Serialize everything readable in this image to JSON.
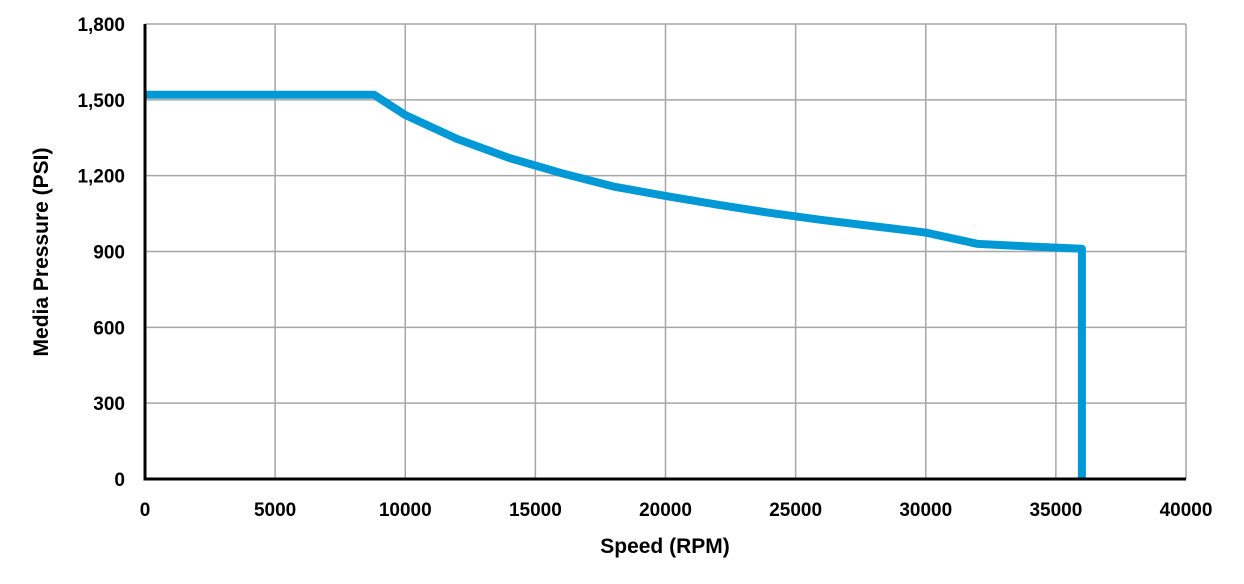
{
  "chart_data": {
    "type": "line",
    "title": "",
    "xlabel": "Speed (RPM)",
    "ylabel": "Media Pressure (PSI)",
    "xlim": [
      0,
      40000
    ],
    "ylim": [
      0,
      1800
    ],
    "xticks": [
      0,
      5000,
      10000,
      15000,
      20000,
      25000,
      30000,
      35000,
      40000
    ],
    "xtick_labels": [
      "0",
      "5000",
      "10000",
      "15000",
      "20000",
      "25000",
      "30000",
      "35000",
      "40000"
    ],
    "yticks": [
      0,
      300,
      600,
      900,
      1200,
      1500,
      1800
    ],
    "ytick_labels": [
      "0",
      "300",
      "600",
      "900",
      "1,200",
      "1,500",
      "1,800"
    ],
    "grid": true,
    "legend": "none",
    "series_color": "#0099D6",
    "series": [
      {
        "x": [
          0,
          8800,
          10000,
          12000,
          14000,
          16000,
          18000,
          20000,
          22000,
          24000,
          26000,
          28000,
          30000,
          32000,
          34000,
          36000,
          36000
        ],
        "y": [
          1520,
          1520,
          1440,
          1345,
          1270,
          1210,
          1157,
          1120,
          1085,
          1053,
          1025,
          1000,
          975,
          930,
          920,
          911,
          0
        ]
      }
    ]
  }
}
